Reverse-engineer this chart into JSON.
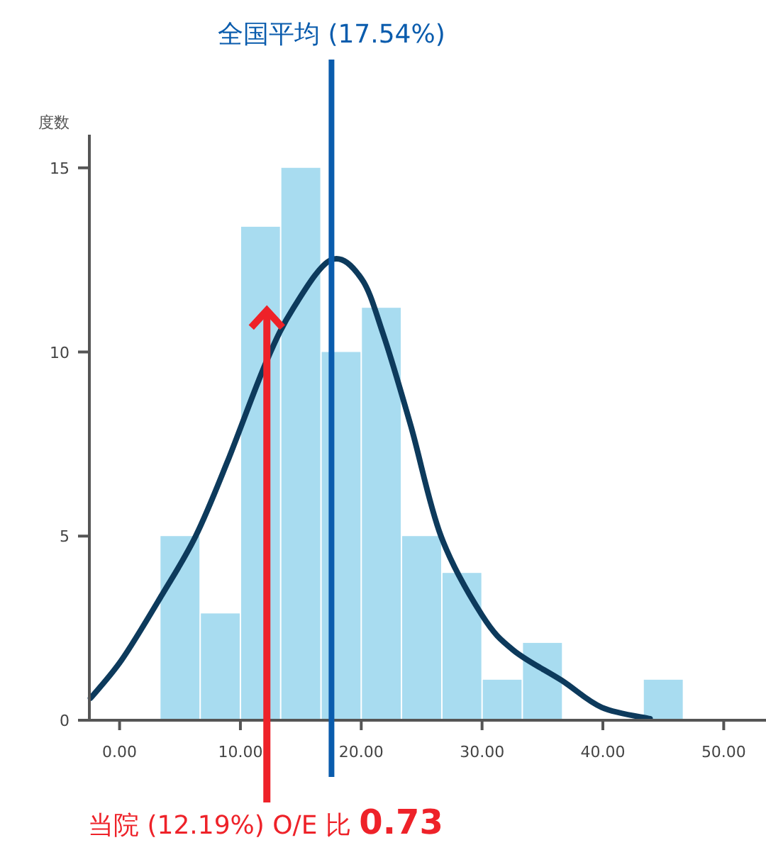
{
  "chart_data": {
    "type": "histogram",
    "ylabel": "度数",
    "series": [
      {
        "type": "histogram",
        "color": "#a8dcf0",
        "bins": [
          3.33,
          6.67,
          10,
          13.33,
          16.67,
          20,
          23.33,
          26.67,
          30,
          33.33,
          36.67,
          40,
          43.33,
          46.67
        ],
        "values": [
          5,
          2.9,
          13.4,
          15,
          10,
          11.2,
          5,
          4,
          1.1,
          2.1,
          0,
          0,
          1.1
        ]
      },
      {
        "type": "line",
        "color": "#0d3a5c",
        "x": [
          -2.4,
          0.2,
          3.5,
          6.3,
          8.9,
          12.1,
          14.4,
          17.5,
          20,
          21.8,
          24.1,
          26.6,
          30,
          32.6,
          36.6,
          39.9,
          43.9
        ],
        "values": [
          0.6,
          1.65,
          3.4,
          5,
          7,
          9.7,
          11.2,
          12.5,
          12,
          10.5,
          8,
          5,
          2.85,
          1.9,
          1.08,
          0.35,
          0.04
        ]
      }
    ],
    "xlim": [
      -2.5,
      53.5
    ],
    "ylim": [
      0,
      15.9
    ],
    "xticks": [
      {
        "value": 0,
        "label": "0.00"
      },
      {
        "value": 10,
        "label": "10.00"
      },
      {
        "value": 20,
        "label": "20.00"
      },
      {
        "value": 30,
        "label": "30.00"
      },
      {
        "value": 40,
        "label": "40.00"
      },
      {
        "value": 50,
        "label": "50.00"
      }
    ],
    "yticks": [
      0,
      5,
      10,
      15
    ],
    "ref_lines": [
      {
        "axis": "x",
        "value": 17.54,
        "label": "全国平均 (17.54%)",
        "color": "#0a5cad"
      },
      {
        "axis": "x",
        "value": 12.19,
        "label": "当院 (12.19%) O/E 比 **0.73**",
        "color": "#ee2229"
      }
    ],
    "grid": false
  }
}
